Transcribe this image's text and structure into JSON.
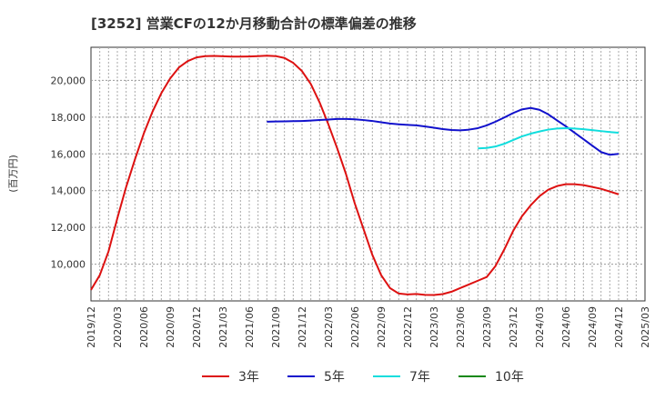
{
  "chart_data": {
    "type": "line",
    "title": "[3252]  営業CFの12か月移動合計の標準偏差の推移",
    "ylabel": "(百万円)",
    "xlabel": "",
    "ylim": [
      8000,
      21800
    ],
    "yticks": [
      10000,
      12000,
      14000,
      16000,
      18000,
      20000
    ],
    "ytick_labels": [
      "10,000",
      "12,000",
      "14,000",
      "16,000",
      "18,000",
      "20,000"
    ],
    "xticks": [
      "2019-12",
      "2020-03",
      "2020-06",
      "2020-09",
      "2020-12",
      "2021-03",
      "2021-06",
      "2021-09",
      "2021-12",
      "2022-03",
      "2022-06",
      "2022-09",
      "2022-12",
      "2023-03",
      "2023-06",
      "2023-09",
      "2023-12",
      "2024-03",
      "2024-06",
      "2024-09",
      "2024-12",
      "2025-03"
    ],
    "xtick_labels": [
      "2019/12",
      "2020/03",
      "2020/06",
      "2020/09",
      "2020/12",
      "2021/03",
      "2021/06",
      "2021/09",
      "2021/12",
      "2022/03",
      "2022/06",
      "2022/09",
      "2022/12",
      "2023/03",
      "2023/06",
      "2023/09",
      "2023/12",
      "2024/03",
      "2024/06",
      "2024/09",
      "2024/12",
      "2025/03"
    ],
    "grid": true,
    "legend_position": "bottom",
    "series": [
      {
        "name": "3年",
        "color": "#dd1111",
        "x": [
          "2019-12",
          "2020-01",
          "2020-02",
          "2020-03",
          "2020-04",
          "2020-05",
          "2020-06",
          "2020-07",
          "2020-08",
          "2020-09",
          "2020-10",
          "2020-11",
          "2020-12",
          "2021-01",
          "2021-02",
          "2021-03",
          "2021-04",
          "2021-05",
          "2021-06",
          "2021-07",
          "2021-08",
          "2021-09",
          "2021-10",
          "2021-11",
          "2021-12",
          "2022-01",
          "2022-02",
          "2022-03",
          "2022-04",
          "2022-05",
          "2022-06",
          "2022-07",
          "2022-08",
          "2022-09",
          "2022-10",
          "2022-11",
          "2022-12",
          "2023-01",
          "2023-02",
          "2023-03",
          "2023-04",
          "2023-05",
          "2023-06",
          "2023-07",
          "2023-08",
          "2023-09",
          "2023-10",
          "2023-11",
          "2023-12",
          "2024-01",
          "2024-02",
          "2024-03",
          "2024-04",
          "2024-05",
          "2024-06",
          "2024-07",
          "2024-08",
          "2024-09",
          "2024-10",
          "2024-11",
          "2024-12"
        ],
        "values": [
          8600,
          9400,
          10700,
          12500,
          14200,
          15700,
          17100,
          18300,
          19300,
          20100,
          20700,
          21050,
          21250,
          21320,
          21330,
          21310,
          21290,
          21290,
          21300,
          21320,
          21340,
          21320,
          21220,
          20950,
          20500,
          19800,
          18800,
          17600,
          16300,
          14900,
          13300,
          11900,
          10500,
          9400,
          8700,
          8400,
          8350,
          8380,
          8330,
          8320,
          8370,
          8500,
          8700,
          8900,
          9100,
          9300,
          9900,
          10800,
          11800,
          12600,
          13200,
          13700,
          14050,
          14250,
          14350,
          14350,
          14300,
          14200,
          14100,
          13950,
          13800
        ]
      },
      {
        "name": "5年",
        "color": "#1111cc",
        "x": [
          "2021-08",
          "2021-09",
          "2021-10",
          "2021-11",
          "2021-12",
          "2022-01",
          "2022-02",
          "2022-03",
          "2022-04",
          "2022-05",
          "2022-06",
          "2022-07",
          "2022-08",
          "2022-09",
          "2022-10",
          "2022-11",
          "2022-12",
          "2023-01",
          "2023-02",
          "2023-03",
          "2023-04",
          "2023-05",
          "2023-06",
          "2023-07",
          "2023-08",
          "2023-09",
          "2023-10",
          "2023-11",
          "2023-12",
          "2024-01",
          "2024-02",
          "2024-03",
          "2024-04",
          "2024-05",
          "2024-06",
          "2024-07",
          "2024-08",
          "2024-09",
          "2024-10",
          "2024-11",
          "2024-12"
        ],
        "values": [
          17750,
          17760,
          17770,
          17780,
          17790,
          17810,
          17840,
          17870,
          17900,
          17900,
          17880,
          17840,
          17790,
          17720,
          17650,
          17610,
          17580,
          17550,
          17490,
          17420,
          17350,
          17300,
          17280,
          17320,
          17400,
          17550,
          17750,
          17980,
          18220,
          18420,
          18500,
          18400,
          18150,
          17820,
          17500,
          17150,
          16800,
          16450,
          16100,
          15950,
          16000
        ]
      },
      {
        "name": "7年",
        "color": "#11dddd",
        "x": [
          "2023-08",
          "2023-09",
          "2023-10",
          "2023-11",
          "2023-12",
          "2024-01",
          "2024-02",
          "2024-03",
          "2024-04",
          "2024-05",
          "2024-06",
          "2024-07",
          "2024-08",
          "2024-09",
          "2024-10",
          "2024-11",
          "2024-12"
        ],
        "values": [
          16300,
          16320,
          16400,
          16550,
          16750,
          16950,
          17100,
          17220,
          17320,
          17380,
          17400,
          17380,
          17340,
          17290,
          17240,
          17190,
          17150
        ]
      },
      {
        "name": "10年",
        "color": "#118811",
        "x": [],
        "values": []
      }
    ]
  }
}
